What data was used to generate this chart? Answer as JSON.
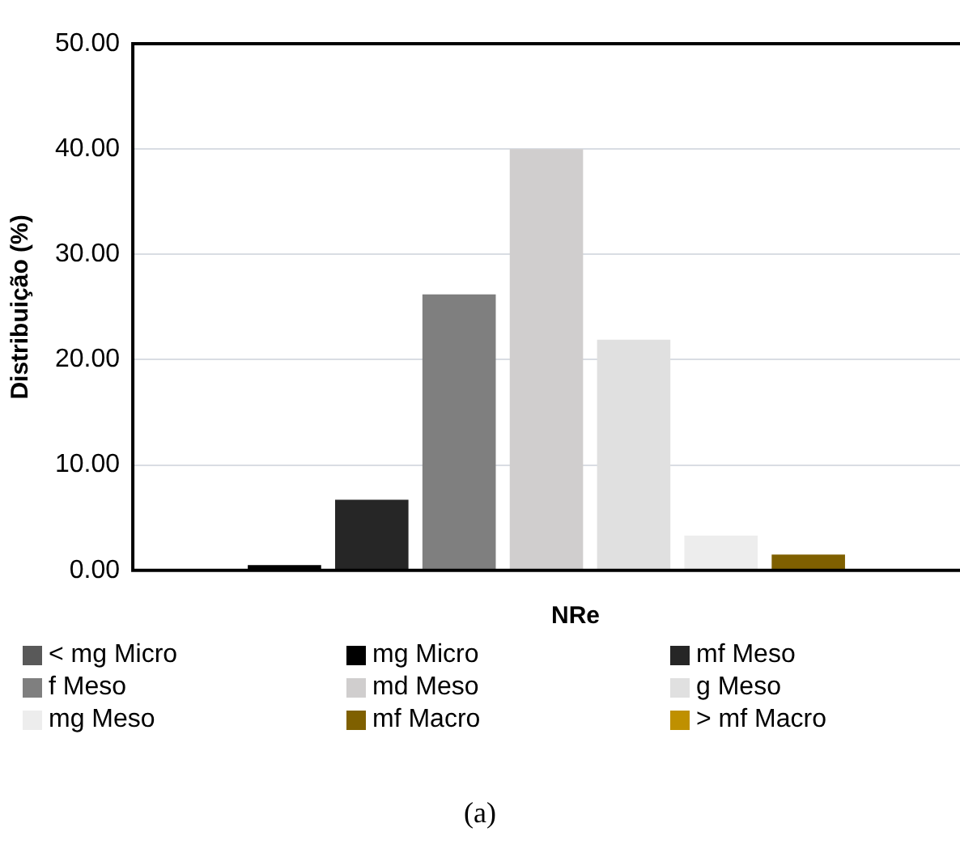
{
  "chart_data": {
    "type": "bar",
    "xlabel": "NRe",
    "ylabel": "Distribuição (%)",
    "categories": [
      null
    ],
    "series": [
      {
        "name": "< mg Micro",
        "color": "#595959",
        "values": [
          0
        ]
      },
      {
        "name": "mg Micro",
        "color": "#000000",
        "values": [
          0.5
        ]
      },
      {
        "name": "mf Meso",
        "color": "#262626",
        "values": [
          6.7
        ]
      },
      {
        "name": "f Meso",
        "color": "#7f7f7f",
        "values": [
          26.2
        ]
      },
      {
        "name": "md Meso",
        "color": "#d0cece",
        "values": [
          40.0
        ]
      },
      {
        "name": "g Meso",
        "color": "#e0e0e0",
        "values": [
          21.9
        ]
      },
      {
        "name": "mg Meso",
        "color": "#ededed",
        "values": [
          3.3
        ]
      },
      {
        "name": "mf Macro",
        "color": "#7f6000",
        "values": [
          1.5
        ]
      },
      {
        "name": "> mf Macro",
        "color": "#bf9000",
        "values": [
          0
        ]
      }
    ],
    "ylim": [
      0,
      50
    ],
    "yticks": [
      {
        "value": 0,
        "label": "0.00"
      },
      {
        "value": 10,
        "label": "10.00"
      },
      {
        "value": 20,
        "label": "20.00"
      },
      {
        "value": 30,
        "label": "30.00"
      },
      {
        "value": 40,
        "label": "40.00"
      },
      {
        "value": 50,
        "label": "50.00"
      }
    ],
    "grid": "y",
    "legend": "bottom",
    "annotations": [
      "(a)"
    ]
  }
}
